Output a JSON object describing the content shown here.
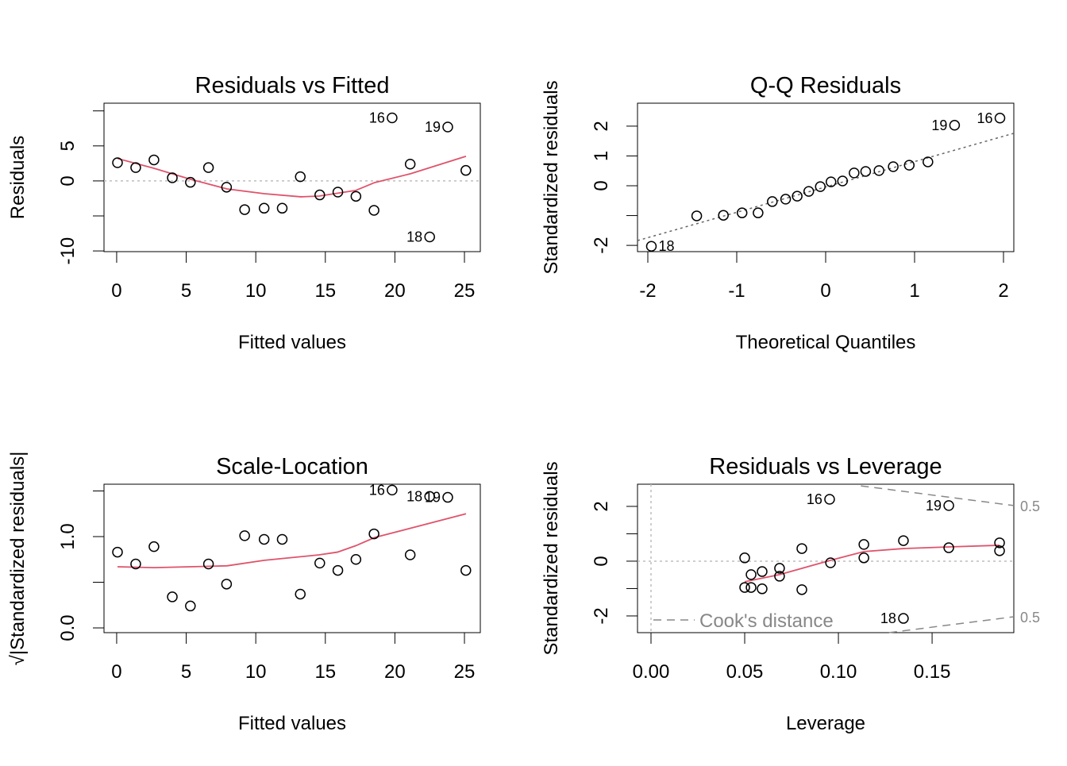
{
  "chart_data": [
    {
      "type": "scatter",
      "title": "Residuals vs Fitted",
      "xlabel": "Fitted values",
      "ylabel": "Residuals",
      "xlim": [
        -0.91,
        26.14
      ],
      "ylim": [
        -10.1,
        11.1
      ],
      "xticks": [
        0,
        5,
        10,
        15,
        20,
        25
      ],
      "xticklabels": [
        "0",
        "5",
        "10",
        "15",
        "20",
        "25"
      ],
      "yticks": [
        -10,
        -5,
        0,
        5,
        10
      ],
      "yticklabels": [
        {
          "v": -10,
          "t": "-10"
        },
        {
          "v": 0,
          "t": "0"
        },
        {
          "v": 5,
          "t": "5"
        }
      ],
      "hline": 0,
      "points": [
        [
          0.06,
          2.6
        ],
        [
          1.37,
          1.9
        ],
        [
          2.68,
          3.0
        ],
        [
          4.0,
          0.45
        ],
        [
          5.3,
          -0.2
        ],
        [
          6.6,
          1.9
        ],
        [
          7.9,
          -0.9
        ],
        [
          9.2,
          -4.1
        ],
        [
          10.6,
          -3.9
        ],
        [
          11.9,
          -3.9
        ],
        [
          13.2,
          0.6
        ],
        [
          14.6,
          -2.0
        ],
        [
          15.9,
          -1.6
        ],
        [
          17.2,
          -2.2
        ],
        [
          18.5,
          -4.2
        ],
        [
          19.8,
          9.0
        ],
        [
          21.1,
          2.4
        ],
        [
          22.5,
          -8.0
        ],
        [
          23.8,
          7.7
        ],
        [
          25.1,
          1.5
        ]
      ],
      "labels": [
        {
          "i": 15,
          "t": "16"
        },
        {
          "i": 17,
          "t": "18"
        },
        {
          "i": 18,
          "t": "19"
        }
      ],
      "smooth": [
        [
          0.06,
          3.2
        ],
        [
          2.68,
          1.8
        ],
        [
          5.31,
          0.23
        ],
        [
          7.93,
          -1.14
        ],
        [
          10.61,
          -1.82
        ],
        [
          13.24,
          -2.27
        ],
        [
          14.55,
          -2.16
        ],
        [
          17.18,
          -1.36
        ],
        [
          18.55,
          -0.23
        ],
        [
          21.12,
          1.02
        ],
        [
          25.11,
          3.52
        ]
      ]
    },
    {
      "type": "scatter",
      "title": "Q-Q Residuals",
      "xlabel": "Theoretical Quantiles",
      "ylabel": "Standardized residuals",
      "xlim": [
        -2.116,
        2.116
      ],
      "ylim": [
        -2.21,
        2.77
      ],
      "xticks": [
        -2,
        -1,
        0,
        1,
        2
      ],
      "xticklabels": [
        "-2",
        "-1",
        "0",
        "1",
        "2"
      ],
      "yticks": [
        -2,
        -1,
        0,
        1,
        2
      ],
      "yticklabels": [
        {
          "v": -2,
          "t": "-2"
        },
        {
          "v": 0,
          "t": "0"
        },
        {
          "v": 1,
          "t": "1"
        },
        {
          "v": 2,
          "t": "2"
        }
      ],
      "refline": [
        [
          -2.116,
          -1.84
        ],
        [
          2.116,
          1.76
        ]
      ],
      "points": [
        [
          -1.96,
          -2.03
        ],
        [
          -1.45,
          -1.01
        ],
        [
          -1.15,
          -0.99
        ],
        [
          -0.94,
          -0.91
        ],
        [
          -0.76,
          -0.91
        ],
        [
          -0.6,
          -0.53
        ],
        [
          -0.45,
          -0.45
        ],
        [
          -0.32,
          -0.35
        ],
        [
          -0.19,
          -0.19
        ],
        [
          -0.06,
          -0.03
        ],
        [
          0.06,
          0.13
        ],
        [
          0.19,
          0.16
        ],
        [
          0.32,
          0.43
        ],
        [
          0.45,
          0.48
        ],
        [
          0.6,
          0.51
        ],
        [
          0.76,
          0.64
        ],
        [
          0.94,
          0.69
        ],
        [
          1.15,
          0.8
        ],
        [
          1.45,
          2.03
        ],
        [
          1.96,
          2.27
        ]
      ],
      "labels": [
        {
          "i": 0,
          "t": "18",
          "right": true
        },
        {
          "i": 18,
          "t": "19"
        },
        {
          "i": 19,
          "t": "16"
        }
      ]
    },
    {
      "type": "scatter",
      "title": "Scale-Location",
      "xlabel": "Fitted values",
      "ylabel": "√|Standardized residuals|",
      "xlim": [
        -0.91,
        26.14
      ],
      "ylim": [
        -0.052,
        1.574
      ],
      "xticks": [
        0,
        5,
        10,
        15,
        20,
        25
      ],
      "xticklabels": [
        "0",
        "5",
        "10",
        "15",
        "20",
        "25"
      ],
      "yticks": [
        0,
        0.5,
        1.0,
        1.5
      ],
      "yticklabels": [
        {
          "v": 0,
          "t": "0.0"
        },
        {
          "v": 1,
          "t": "1.0"
        }
      ],
      "points": [
        [
          0.06,
          0.83
        ],
        [
          1.37,
          0.7
        ],
        [
          2.68,
          0.89
        ],
        [
          4.0,
          0.34
        ],
        [
          5.3,
          0.24
        ],
        [
          6.6,
          0.7
        ],
        [
          7.9,
          0.48
        ],
        [
          9.2,
          1.01
        ],
        [
          10.6,
          0.97
        ],
        [
          11.9,
          0.97
        ],
        [
          13.2,
          0.37
        ],
        [
          14.6,
          0.71
        ],
        [
          15.9,
          0.63
        ],
        [
          17.2,
          0.75
        ],
        [
          18.5,
          1.03
        ],
        [
          19.8,
          1.51
        ],
        [
          21.1,
          0.8
        ],
        [
          22.5,
          1.44
        ],
        [
          23.8,
          1.43
        ],
        [
          25.1,
          0.63
        ]
      ],
      "labels": [
        {
          "i": 15,
          "t": "16"
        },
        {
          "i": 17,
          "t": "18"
        },
        {
          "i": 18,
          "t": "19"
        }
      ],
      "smooth": [
        [
          0.06,
          0.67
        ],
        [
          2.68,
          0.66
        ],
        [
          7.93,
          0.68
        ],
        [
          10.61,
          0.74
        ],
        [
          14.55,
          0.8
        ],
        [
          15.87,
          0.83
        ],
        [
          17.18,
          0.9
        ],
        [
          18.55,
          0.99
        ],
        [
          25.11,
          1.25
        ]
      ]
    },
    {
      "type": "scatter",
      "title": "Residuals vs Leverage",
      "xlabel": "Leverage",
      "ylabel": "Standardized residuals",
      "xlim": [
        -0.0072,
        0.1936
      ],
      "ylim": [
        -2.61,
        2.81
      ],
      "xticks": [
        0,
        0.05,
        0.1,
        0.15
      ],
      "xticklabels": [
        "0.00",
        "0.05",
        "0.10",
        "0.15"
      ],
      "yticks": [
        -2,
        -1,
        0,
        1,
        2
      ],
      "yticklabels": [
        {
          "v": -2,
          "t": "-2"
        },
        {
          "v": 0,
          "t": "0"
        },
        {
          "v": 2,
          "t": "2"
        }
      ],
      "hline": 0,
      "vline": 0,
      "points": [
        [
          0.05,
          0.12
        ],
        [
          0.0534,
          -0.49
        ],
        [
          0.05,
          -0.96
        ],
        [
          0.0534,
          -0.96
        ],
        [
          0.0593,
          -0.38
        ],
        [
          0.0593,
          -1.01
        ],
        [
          0.0686,
          -0.26
        ],
        [
          0.0686,
          -0.55
        ],
        [
          0.0805,
          0.46
        ],
        [
          0.0805,
          -1.04
        ],
        [
          0.0958,
          -0.06
        ],
        [
          0.1136,
          0.61
        ],
        [
          0.1136,
          0.12
        ],
        [
          0.1347,
          0.75
        ],
        [
          0.1589,
          0.49
        ],
        [
          0.186,
          0.67
        ],
        [
          0.186,
          0.38
        ],
        [
          0.0953,
          2.26
        ],
        [
          0.1589,
          2.03
        ],
        [
          0.1347,
          -2.09
        ]
      ],
      "labels": [
        {
          "i": 17,
          "t": "16"
        },
        {
          "i": 18,
          "t": "19"
        },
        {
          "i": 19,
          "t": "18"
        }
      ],
      "smooth": [
        [
          0.05,
          -0.75
        ],
        [
          0.0686,
          -0.49
        ],
        [
          0.0958,
          0.03
        ],
        [
          0.1136,
          0.35
        ],
        [
          0.1347,
          0.46
        ],
        [
          0.1589,
          0.52
        ],
        [
          0.186,
          0.58
        ]
      ],
      "cooks": [
        {
          "line": [
            [
              0.112,
              2.75
            ],
            [
              0.1936,
              2.03
            ]
          ],
          "label": "0.5"
        },
        {
          "line": [
            [
              0.127,
              -2.61
            ],
            [
              0.1936,
              -2.03
            ]
          ],
          "label": "0.5"
        }
      ],
      "legend": "Cook's distance",
      "legend_position": "bottom-left"
    }
  ],
  "colors": {
    "smooth": "#DF536B",
    "reference": "#BEBEBE",
    "qqline": "#666666",
    "cooks": "#888888",
    "points": "#000000"
  }
}
